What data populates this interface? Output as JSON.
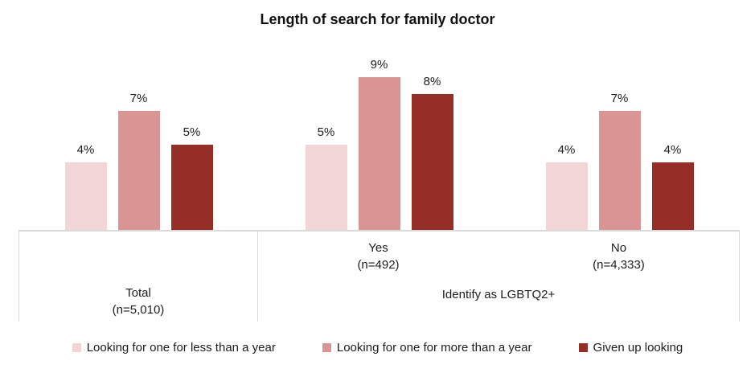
{
  "title": "Length of search for family doctor",
  "chart_data": {
    "type": "bar",
    "title": "Length of search for family doctor",
    "unit": "%",
    "value_axis": {
      "min": 0,
      "max": 10,
      "visible": false
    },
    "gridlines": false,
    "data_labels": true,
    "legend_position": "bottom",
    "categories": [
      "Total (n=5,010)",
      "Yes (n=492)",
      "No (n=4,333)"
    ],
    "category_axis": {
      "groups": [
        {
          "label_lines": [
            "Total",
            "(n=5,010)"
          ],
          "parent": null
        },
        {
          "label_lines": [
            "Yes",
            "(n=492)"
          ],
          "parent": "Identify as LGBTQ2+"
        },
        {
          "label_lines": [
            "No",
            "(n=4,333)"
          ],
          "parent": "Identify as LGBTQ2+"
        }
      ],
      "parent_label": "Identify as LGBTQ2+"
    },
    "series": [
      {
        "name": "Looking for one for less than a year",
        "color": "#f2d5d7",
        "values": [
          4,
          5,
          4
        ]
      },
      {
        "name": "Looking for one for more than a year",
        "color": "#d99593",
        "values": [
          7,
          9,
          7
        ]
      },
      {
        "name": "Given up looking",
        "color": "#952e27",
        "values": [
          5,
          8,
          4
        ]
      }
    ]
  },
  "colors": {
    "axis_border": "#d9d9d9",
    "text": "#1c1c1c"
  }
}
